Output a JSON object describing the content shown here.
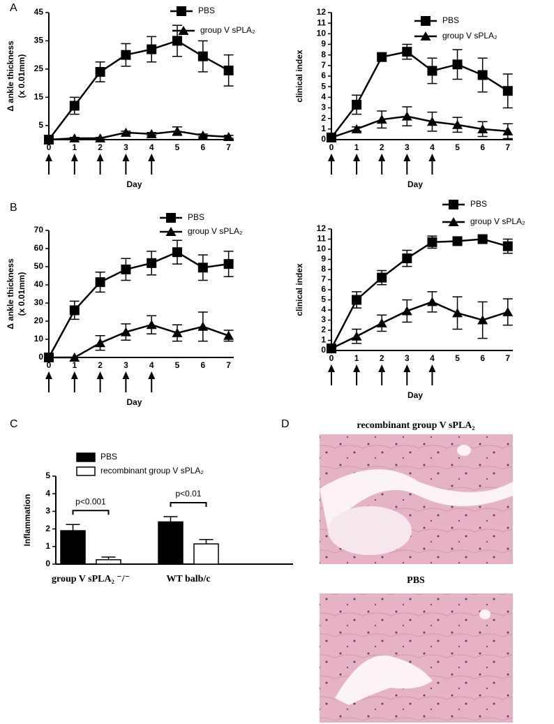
{
  "panel_labels": [
    "A",
    "B",
    "C",
    "D"
  ],
  "chart_data": [
    {
      "type": "line",
      "xlabel": "Day",
      "ylabel": [
        "Δ ankle thickness",
        "(x 0.01mm)"
      ],
      "x": [
        0,
        1,
        2,
        3,
        4,
        5,
        6,
        7
      ],
      "xlim": [
        0,
        7.2
      ],
      "xticks": [
        0,
        1,
        2,
        3,
        4,
        5,
        6,
        7
      ],
      "ylim": [
        0,
        45
      ],
      "yticks": [
        5,
        15,
        25,
        35,
        45
      ],
      "legend": "top-right",
      "series": [
        {
          "name": "PBS",
          "color": "#000000",
          "marker": "square",
          "values": [
            0,
            12,
            24,
            30,
            32,
            35,
            29.5,
            24.5
          ],
          "errors": [
            0,
            3,
            3.5,
            4,
            4.5,
            5.5,
            5.5,
            5.5
          ]
        },
        {
          "name": "group V sPLA₂",
          "color": "#000000",
          "marker": "triangle",
          "values": [
            0,
            0.5,
            0.5,
            2.5,
            2,
            3,
            1.5,
            1
          ],
          "errors": [
            0,
            0.3,
            0.3,
            0.5,
            0.5,
            1.5,
            0.5,
            0.5
          ]
        }
      ]
    },
    {
      "type": "line",
      "xlabel": "Day",
      "ylabel": [
        "clinical index"
      ],
      "x": [
        0,
        1,
        2,
        3,
        4,
        5,
        6,
        7
      ],
      "xlim": [
        0,
        7.2
      ],
      "xticks": [
        0,
        1,
        2,
        3,
        4,
        5,
        6,
        7
      ],
      "ylim": [
        0,
        12
      ],
      "yticks": [
        0,
        1,
        2,
        3,
        4,
        5,
        6,
        7,
        8,
        9,
        10,
        11,
        12
      ],
      "legend": "top-right",
      "series": [
        {
          "name": "PBS",
          "color": "#000000",
          "marker": "square",
          "values": [
            0.2,
            3.3,
            7.8,
            8.3,
            6.5,
            7.1,
            6.1,
            4.6
          ],
          "errors": [
            0.1,
            0.9,
            0.4,
            0.7,
            1.2,
            1.4,
            1.6,
            1.6
          ]
        },
        {
          "name": "group V sPLA₂",
          "color": "#000000",
          "marker": "triangle",
          "values": [
            0.2,
            1,
            1.9,
            2.2,
            1.7,
            1.4,
            1,
            0.8
          ],
          "errors": [
            0.1,
            0.2,
            0.8,
            0.9,
            0.9,
            0.7,
            0.7,
            0.7
          ]
        }
      ]
    },
    {
      "type": "line",
      "xlabel": "Day",
      "ylabel": [
        "Δ ankle thickness",
        "(x 0.01mm)"
      ],
      "x": [
        0,
        1,
        2,
        3,
        4,
        5,
        6,
        7
      ],
      "xlim": [
        0,
        7.2
      ],
      "xticks": [
        0,
        1,
        2,
        3,
        4,
        5,
        6,
        7
      ],
      "ylim": [
        0,
        70
      ],
      "yticks": [
        0,
        10,
        20,
        30,
        40,
        50,
        60,
        70
      ],
      "legend": "top-right",
      "series": [
        {
          "name": "PBS",
          "color": "#000000",
          "marker": "square",
          "values": [
            0,
            26,
            41.5,
            48.5,
            52,
            58,
            49.5,
            51.5
          ],
          "errors": [
            0,
            5,
            5.5,
            6,
            6.5,
            6.5,
            7,
            7
          ]
        },
        {
          "name": "group V sPLA₂",
          "color": "#000000",
          "marker": "triangle",
          "values": [
            0,
            0,
            8,
            14,
            18,
            13.5,
            17,
            12
          ],
          "errors": [
            0,
            0,
            4,
            4.5,
            5,
            4.5,
            8,
            3
          ]
        }
      ]
    },
    {
      "type": "line",
      "xlabel": "Day",
      "ylabel": [
        "clinical index"
      ],
      "x": [
        0,
        1,
        2,
        3,
        4,
        5,
        6,
        7
      ],
      "xlim": [
        0,
        7.2
      ],
      "xticks": [
        0,
        1,
        2,
        3,
        4,
        5,
        6,
        7
      ],
      "ylim": [
        0,
        12
      ],
      "yticks": [
        0,
        1,
        2,
        3,
        4,
        5,
        6,
        7,
        8,
        9,
        10,
        11,
        12
      ],
      "legend": "top-right",
      "series": [
        {
          "name": "PBS",
          "color": "#000000",
          "marker": "square",
          "values": [
            0.2,
            5,
            7.2,
            9.1,
            10.7,
            10.8,
            11,
            10.3
          ],
          "errors": [
            0.1,
            0.8,
            0.7,
            0.8,
            0.6,
            0.3,
            0.3,
            0.7
          ]
        },
        {
          "name": "group V sPLA₂",
          "color": "#000000",
          "marker": "triangle",
          "values": [
            0.2,
            1.4,
            2.7,
            3.9,
            4.8,
            3.7,
            3,
            3.8
          ],
          "errors": [
            0.1,
            0.7,
            0.8,
            1.1,
            1,
            1.6,
            1.8,
            1.3
          ]
        }
      ]
    },
    {
      "type": "bar",
      "ylabel": [
        "Inflammation"
      ],
      "categories": [
        "group V sPLA₂ ⁻/⁻",
        "WT balb/c"
      ],
      "ylim": [
        0,
        5
      ],
      "yticks": [
        0,
        1,
        2,
        3,
        4,
        5
      ],
      "legend": "top",
      "annotations": [
        "p<0.001",
        "p<0.01"
      ],
      "series": [
        {
          "name": "PBS",
          "color": "#000000",
          "values": [
            1.9,
            2.4
          ],
          "errors": [
            0.35,
            0.3
          ]
        },
        {
          "name": "recombinant group V sPLA₂",
          "color": "#ffffff",
          "values": [
            0.25,
            1.15
          ],
          "errors": [
            0.15,
            0.25
          ]
        }
      ]
    }
  ],
  "histology": [
    {
      "title": "recombinant group V sPLA₂"
    },
    {
      "title": "PBS"
    }
  ]
}
